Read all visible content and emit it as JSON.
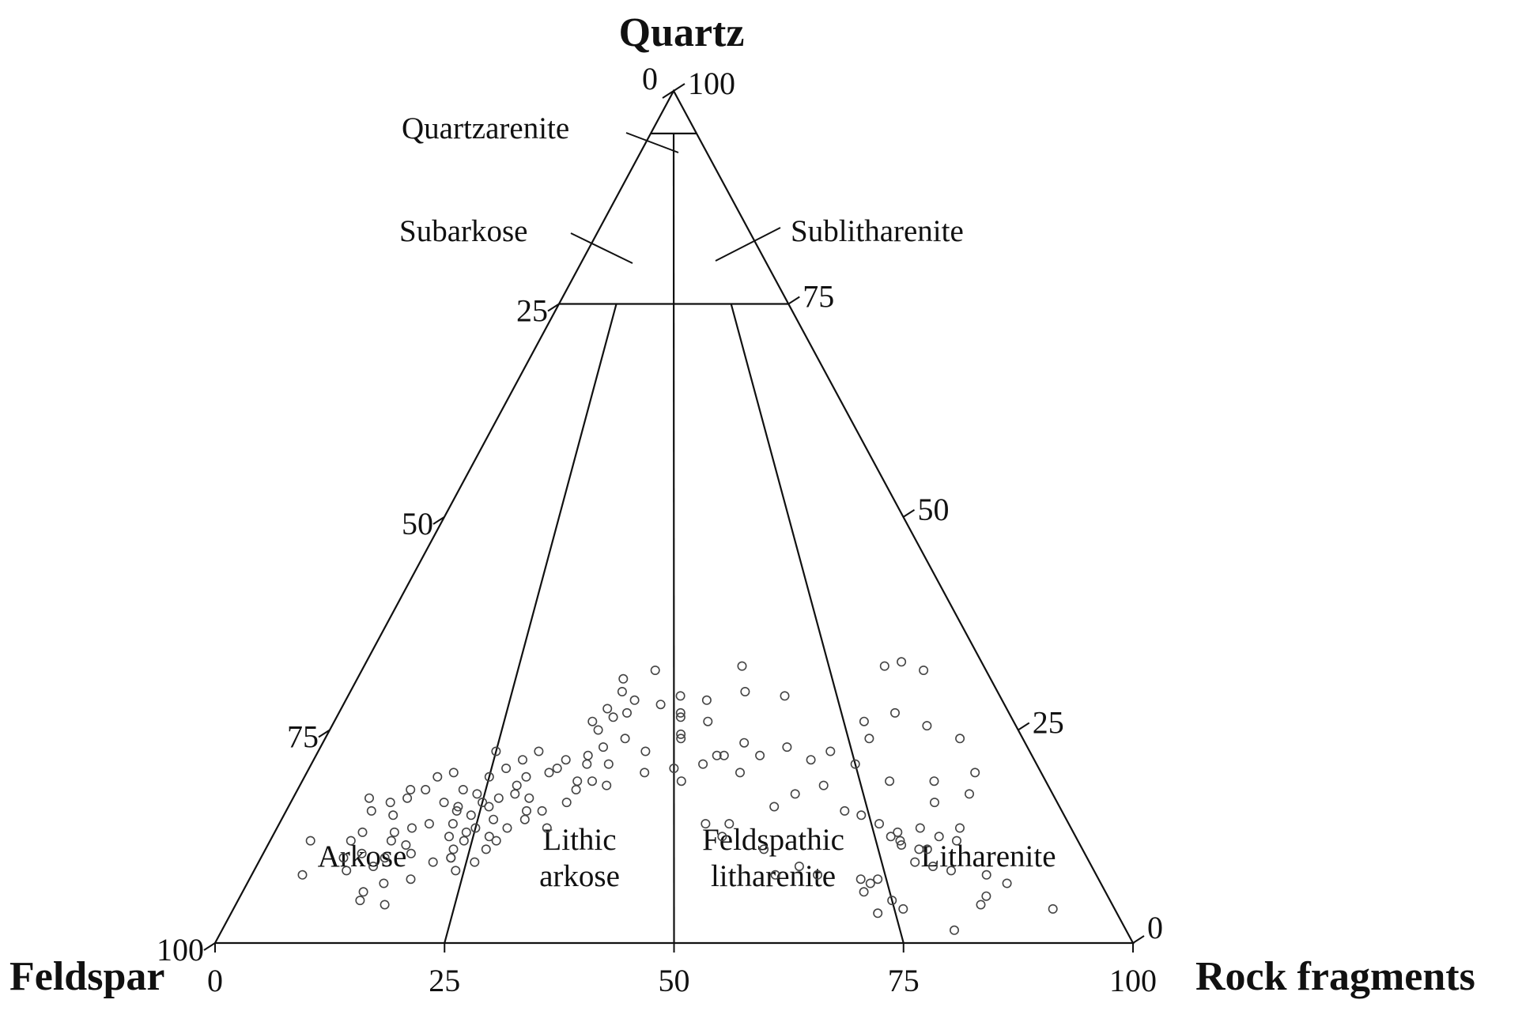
{
  "chart_data": {
    "type": "scatter",
    "subtype": "ternary (QFR)",
    "apex_labels": {
      "top": "Quartz",
      "left": "Feldspar",
      "right": "Rock fragments"
    },
    "axis_ticks": {
      "left_side": [
        "0",
        "25",
        "50",
        "75",
        "100"
      ],
      "right_side": [
        "100",
        "75",
        "50",
        "25",
        "0"
      ],
      "base": [
        "0",
        "25",
        "50",
        "75",
        "100"
      ]
    },
    "fields": [
      {
        "id": "quartzarenite",
        "label": "Quartzarenite"
      },
      {
        "id": "subarkose",
        "label": "Subarkose"
      },
      {
        "id": "sublitharenite",
        "label": "Sublitharenite"
      },
      {
        "id": "arkose",
        "label": "Arkose"
      },
      {
        "id": "lithic-arkose",
        "label": [
          "Lithic",
          "arkose"
        ]
      },
      {
        "id": "feldspathic-litharenite",
        "label": [
          "Feldspathic",
          "litharenite"
        ]
      },
      {
        "id": "litharenite",
        "label": "Litharenite"
      }
    ],
    "boundaries": {
      "quartzarenite_q_min": 95,
      "sub_q_min": 75,
      "rf_ratio_splits": [
        0.25,
        0.5,
        0.75
      ]
    },
    "grid": false,
    "legend": "none",
    "series": [
      {
        "marker": "open-circle",
        "color": "#444444",
        "points": [
          [
            32.0,
            0.47
          ],
          [
            31.0,
            0.42
          ],
          [
            27.0,
            0.43
          ],
          [
            29.5,
            0.42
          ],
          [
            28.0,
            0.48
          ],
          [
            26.0,
            0.38
          ],
          [
            27.5,
            0.4
          ],
          [
            28.5,
            0.44
          ],
          [
            26.5,
            0.41
          ],
          [
            25.0,
            0.39
          ],
          [
            24.0,
            0.43
          ],
          [
            22.5,
            0.46
          ],
          [
            23.0,
            0.4
          ],
          [
            21.0,
            0.41
          ],
          [
            21.5,
            0.29
          ],
          [
            21.0,
            0.38
          ],
          [
            18.5,
            0.41
          ],
          [
            20.0,
            0.33
          ],
          [
            19.5,
            0.3
          ],
          [
            18.0,
            0.37
          ],
          [
            17.5,
            0.29
          ],
          [
            16.5,
            0.36
          ],
          [
            15.5,
            0.33
          ],
          [
            13.5,
            0.34
          ],
          [
            21.5,
            0.35
          ],
          [
            22.0,
            0.38
          ],
          [
            22.5,
            0.31
          ],
          [
            20.5,
            0.27
          ],
          [
            22.5,
            0.25
          ],
          [
            20.5,
            0.34
          ],
          [
            19.0,
            0.37
          ],
          [
            19.5,
            0.25
          ],
          [
            18.5,
            0.29
          ],
          [
            17.0,
            0.27
          ],
          [
            17.0,
            0.31
          ],
          [
            16.0,
            0.26
          ],
          [
            15.5,
            0.31
          ],
          [
            14.5,
            0.31
          ],
          [
            14.5,
            0.27
          ],
          [
            13.5,
            0.29
          ],
          [
            12.5,
            0.27
          ],
          [
            12.0,
            0.28
          ],
          [
            12.5,
            0.22
          ],
          [
            12.0,
            0.24
          ],
          [
            11.0,
            0.23
          ],
          [
            10.0,
            0.23
          ],
          [
            11.0,
            0.27
          ],
          [
            10.5,
            0.18
          ],
          [
            10.0,
            0.23
          ],
          [
            9.5,
            0.26
          ],
          [
            9.5,
            0.21
          ],
          [
            8.5,
            0.24
          ],
          [
            7.5,
            0.19
          ],
          [
            7.0,
            0.16
          ],
          [
            6.0,
            0.14
          ],
          [
            5.0,
            0.14
          ],
          [
            4.5,
            0.17
          ],
          [
            17.5,
            0.24
          ],
          [
            16.5,
            0.25
          ],
          [
            15.0,
            0.24
          ],
          [
            13.5,
            0.25
          ],
          [
            14.0,
            0.22
          ],
          [
            13.0,
            0.24
          ],
          [
            15.5,
            0.22
          ],
          [
            16.5,
            0.2
          ],
          [
            14.0,
            0.19
          ],
          [
            16.0,
            0.22
          ],
          [
            18.0,
            0.22
          ],
          [
            18.0,
            0.17
          ],
          [
            19.5,
            0.18
          ],
          [
            20.0,
            0.2
          ],
          [
            18.0,
            0.15
          ],
          [
            17.0,
            0.15
          ],
          [
            16.5,
            0.13
          ],
          [
            17.0,
            0.1
          ],
          [
            15.5,
            0.11
          ],
          [
            15.0,
            0.14
          ],
          [
            13.0,
            0.11
          ],
          [
            13.0,
            0.15
          ],
          [
            13.5,
            0.17
          ],
          [
            12.0,
            0.15
          ],
          [
            12.0,
            0.1
          ],
          [
            11.5,
            0.17
          ],
          [
            10.5,
            0.12
          ],
          [
            10.0,
            0.15
          ],
          [
            9.0,
            0.14
          ],
          [
            8.5,
            0.11
          ],
          [
            8.0,
            0.06
          ],
          [
            12.0,
            0.05
          ],
          [
            10.0,
            0.1
          ],
          [
            29.0,
            0.51
          ],
          [
            27.0,
            0.51
          ],
          [
            24.5,
            0.51
          ],
          [
            26.5,
            0.51
          ],
          [
            24.0,
            0.51
          ],
          [
            26.0,
            0.55
          ],
          [
            22.0,
            0.57
          ],
          [
            22.0,
            0.62
          ],
          [
            19.0,
            0.51
          ],
          [
            16.0,
            0.63
          ],
          [
            14.0,
            0.54
          ],
          [
            14.0,
            0.57
          ],
          [
            12.5,
            0.56
          ],
          [
            11.0,
            0.61
          ],
          [
            8.0,
            0.67
          ],
          [
            9.0,
            0.65
          ],
          [
            8.0,
            0.62
          ],
          [
            7.5,
            0.72
          ],
          [
            7.0,
            0.73
          ],
          [
            6.0,
            0.72
          ],
          [
            5.0,
            0.75
          ],
          [
            4.0,
            0.76
          ],
          [
            3.5,
            0.73
          ],
          [
            1.5,
            0.81
          ],
          [
            15.0,
            0.74
          ],
          [
            13.5,
            0.86
          ],
          [
            12.0,
            0.85
          ],
          [
            14.0,
            0.76
          ],
          [
            11.0,
            0.8
          ],
          [
            12.5,
            0.77
          ],
          [
            9.0,
            0.81
          ],
          [
            7.0,
            0.89
          ],
          [
            4.5,
            0.85
          ],
          [
            7.5,
            0.74
          ],
          [
            13.0,
            0.78
          ],
          [
            13.5,
            0.81
          ],
          [
            12.5,
            0.83
          ],
          [
            12.0,
            0.78
          ],
          [
            11.5,
            0.78
          ],
          [
            11.0,
            0.81
          ],
          [
            9.5,
            0.79
          ],
          [
            8.5,
            0.83
          ],
          [
            8.0,
            0.87
          ],
          [
            5.5,
            0.86
          ],
          [
            4.0,
            0.93
          ],
          [
            32.5,
            0.84
          ],
          [
            32.0,
            0.9
          ],
          [
            33.0,
            0.87
          ],
          [
            32.5,
            0.61
          ],
          [
            28.5,
            0.55
          ],
          [
            29.5,
            0.61
          ],
          [
            29.0,
            0.67
          ],
          [
            27.0,
            0.83
          ],
          [
            25.5,
            0.87
          ],
          [
            24.0,
            0.91
          ],
          [
            26.0,
            0.78
          ],
          [
            24.0,
            0.78
          ],
          [
            22.5,
            0.72
          ],
          [
            21.0,
            0.75
          ],
          [
            21.5,
            0.69
          ],
          [
            15.5,
            0.72
          ],
          [
            17.5,
            0.66
          ],
          [
            18.5,
            0.7
          ],
          [
            20.0,
            0.59
          ],
          [
            16.5,
            0.84
          ],
          [
            19.0,
            0.85
          ],
          [
            20.0,
            0.91
          ],
          [
            17.5,
            0.89
          ],
          [
            19.0,
            0.79
          ],
          [
            23.0,
            0.66
          ],
          [
            23.5,
            0.6
          ],
          [
            22.0,
            0.56
          ],
          [
            21.0,
            0.54
          ],
          [
            20.5,
            0.5
          ],
          [
            19.0,
            0.39
          ],
          [
            20.0,
            0.46
          ]
        ]
      }
    ]
  }
}
